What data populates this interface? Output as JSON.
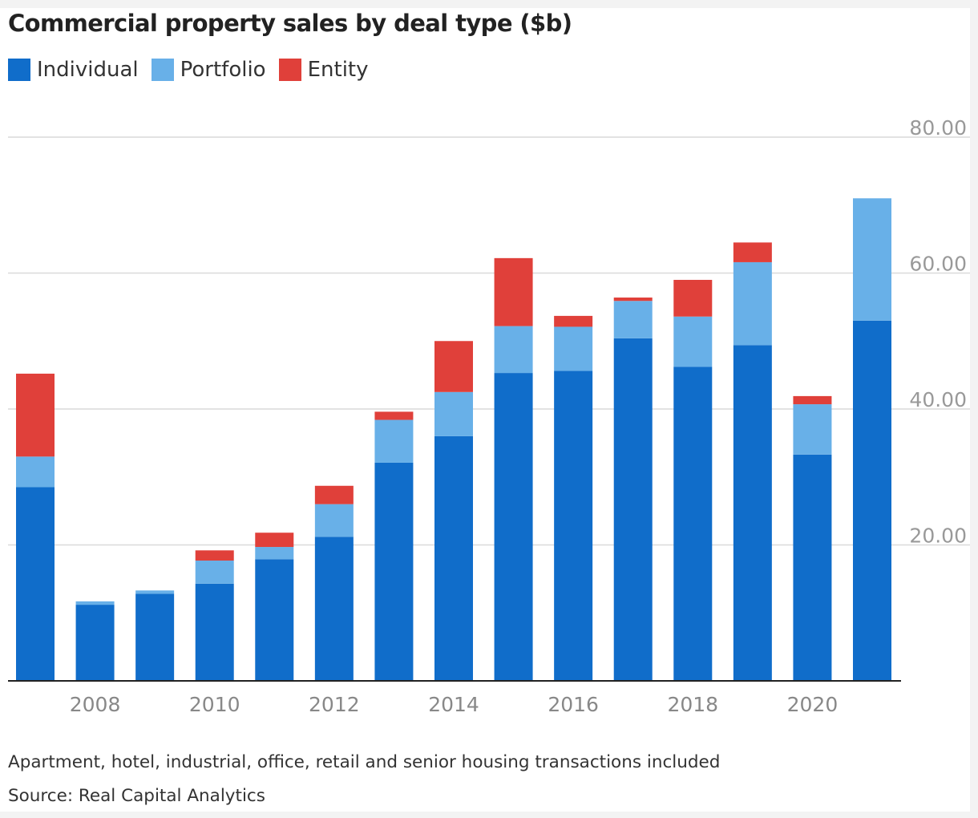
{
  "chart_data": {
    "type": "bar",
    "stacked": true,
    "title": "Commercial property sales by deal type ($b)",
    "xlabel": "",
    "ylabel": "",
    "categories": [
      "2007",
      "2008",
      "2009",
      "2010",
      "2011",
      "2012",
      "2013",
      "2014",
      "2015",
      "2016",
      "2017",
      "2018",
      "2019",
      "2020",
      "2021"
    ],
    "x_tick_labels": [
      "2008",
      "2010",
      "2012",
      "2014",
      "2016",
      "2018",
      "2020"
    ],
    "y_tick_labels": [
      "20.00",
      "40.00",
      "60.00",
      "80.00"
    ],
    "y_ticks": [
      20,
      40,
      60,
      80
    ],
    "ylim": [
      0,
      90
    ],
    "y_axis_side": "right",
    "grid": true,
    "legend_position": "top-left",
    "series": [
      {
        "name": "Individual",
        "color": "#106dca",
        "values": [
          28.5,
          11.2,
          12.8,
          14.3,
          17.9,
          21.2,
          32.1,
          36.0,
          45.3,
          45.6,
          50.4,
          46.2,
          49.4,
          33.3,
          53.0
        ]
      },
      {
        "name": "Portfolio",
        "color": "#68b0e8",
        "values": [
          4.5,
          0.5,
          0.5,
          3.4,
          1.8,
          4.8,
          6.3,
          6.5,
          6.9,
          6.5,
          5.5,
          7.4,
          12.2,
          7.4,
          18.0
        ]
      },
      {
        "name": "Entity",
        "color": "#e0403a",
        "values": [
          12.2,
          0,
          0,
          1.5,
          2.1,
          2.7,
          1.2,
          7.5,
          10.0,
          1.6,
          0.5,
          5.4,
          2.9,
          1.2,
          0
        ]
      }
    ]
  },
  "notes": {
    "description": "Apartment, hotel, industrial, office, retail and senior housing transactions included",
    "source": "Source: Real Capital Analytics"
  },
  "colors": {
    "gridline": "#d9d9d9",
    "axis": "#222222",
    "tick_text": "#999999"
  }
}
